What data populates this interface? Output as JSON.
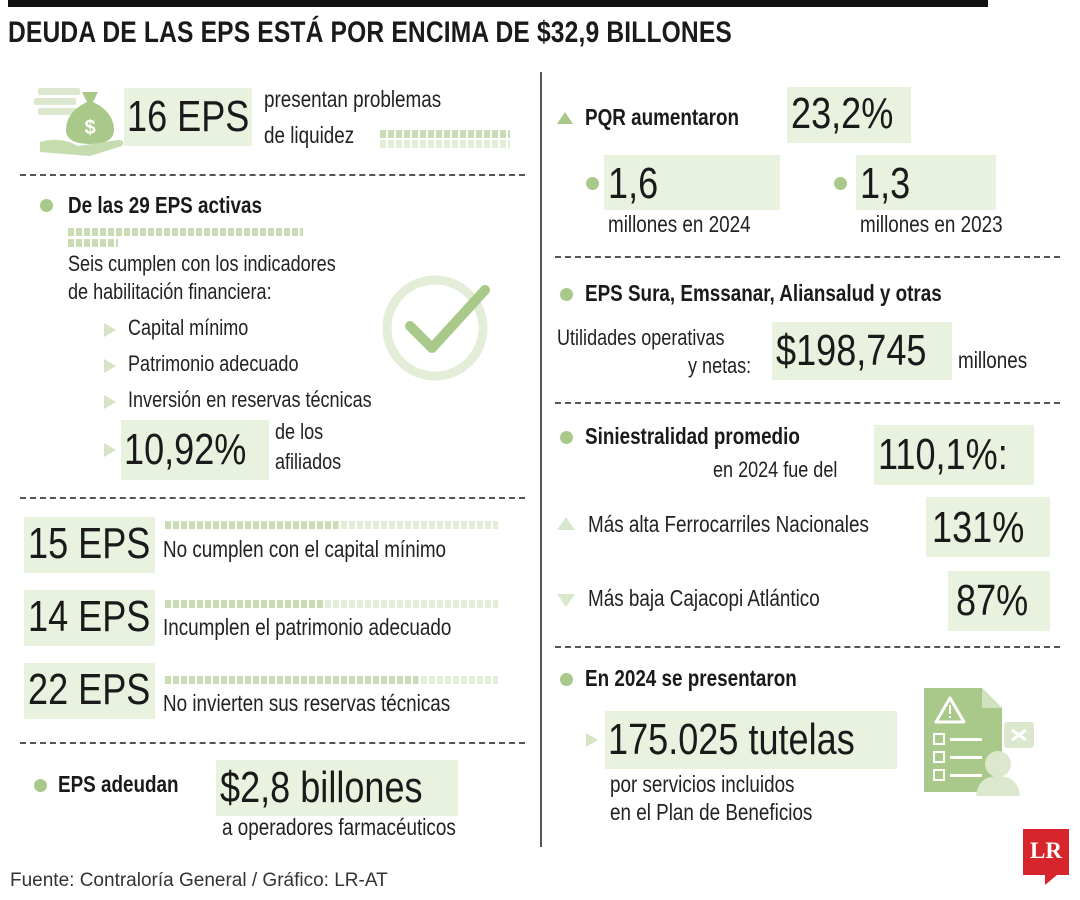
{
  "title": "DEUDA DE LAS EPS ESTÁ POR ENCIMA DE $32,9 BILLONES",
  "left": {
    "liquidity": {
      "value": "16 EPS",
      "text1": "presentan problemas",
      "text2": "de liquidez"
    },
    "active": {
      "heading": "De las 29 EPS activas",
      "desc1": "Seis cumplen con los indicadores",
      "desc2": "de habilitación financiera:",
      "items": [
        "Capital mínimo",
        "Patrimonio adecuado",
        "Inversión en reservas técnicas"
      ],
      "pct_value": "10,92%",
      "pct_text1": "de los",
      "pct_text2": "afiliados"
    },
    "rows": [
      {
        "value": "15 EPS",
        "text": "No cumplen con el capital mínimo",
        "fraction": 0.52
      },
      {
        "value": "14 EPS",
        "text": "Incumplen el patrimonio adecuado",
        "fraction": 0.48
      },
      {
        "value": "22 EPS",
        "text": "No invierten sus reservas técnicas",
        "fraction": 0.76
      }
    ],
    "debt": {
      "label": "EPS adeudan",
      "value": "$2,8 billones",
      "text": "a operadores farmacéuticos"
    }
  },
  "right": {
    "pqr": {
      "label": "PQR aumentaron",
      "value": "23,2%",
      "v1": "1,6",
      "l1": "millones en 2024",
      "v2": "1,3",
      "l2": "millones en 2023"
    },
    "sura": {
      "heading": "EPS Sura, Emssanar, Aliansalud y otras",
      "label1": "Utilidades operativas",
      "label2": "y netas:",
      "value": "$198,745",
      "unit": "millones"
    },
    "sin": {
      "heading": "Siniestralidad promedio",
      "sub": "en 2024 fue del",
      "value": "110,1%:",
      "high_label": "Más alta Ferrocarriles Nacionales",
      "high_value": "131%",
      "low_label": "Más baja Cajacopi Atlántico",
      "low_value": "87%"
    },
    "tutelas": {
      "heading": "En 2024 se presentaron",
      "value": "175.025 tutelas",
      "text1": "por servicios incluidos",
      "text2": "en el Plan de Beneficios"
    }
  },
  "footer": {
    "source": "Fuente: Contraloría General / Gráfico: LR-AT",
    "logo": "LR"
  },
  "colors": {
    "accent": "#a9c98a",
    "highlight": "#e9f1df",
    "logo": "#d7262b"
  }
}
